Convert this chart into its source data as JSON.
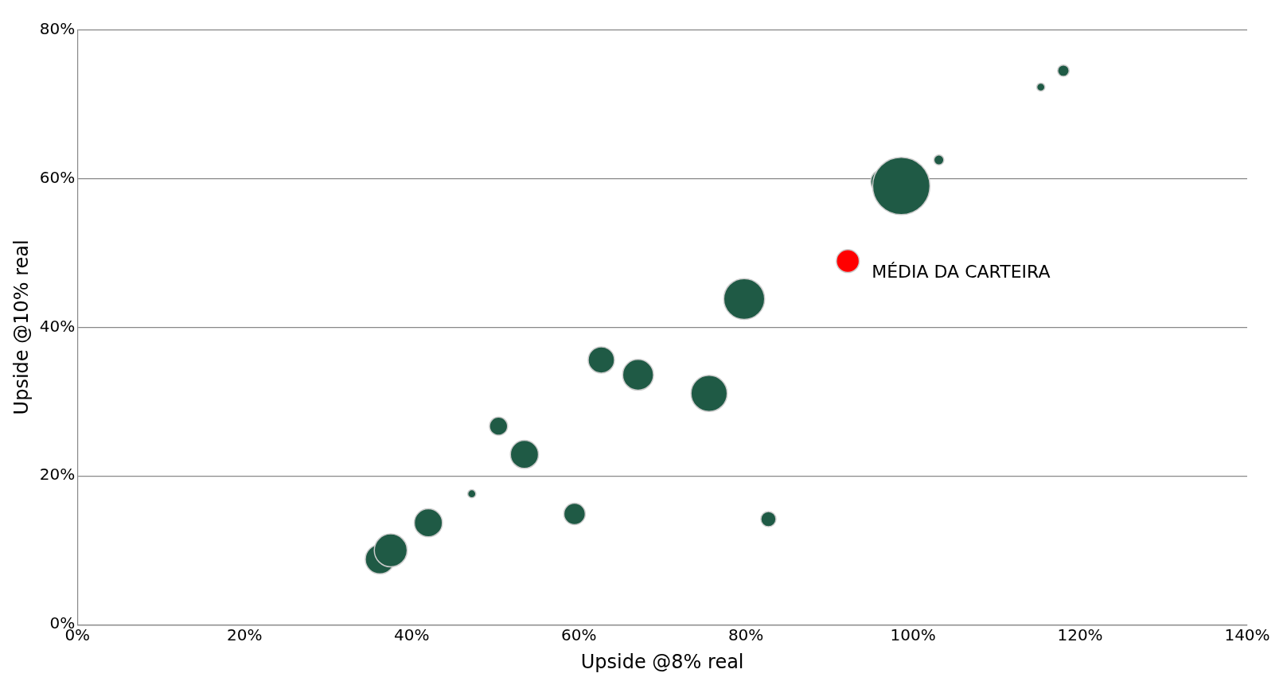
{
  "chart_data": {
    "type": "bubble",
    "xlabel": "Upside @8% real",
    "ylabel": "Upside @10% real",
    "xlim": [
      0,
      140
    ],
    "ylim": [
      0,
      80
    ],
    "xticks": [
      {
        "value": 0,
        "label": "0%"
      },
      {
        "value": 20,
        "label": "20%"
      },
      {
        "value": 40,
        "label": "40%"
      },
      {
        "value": 60,
        "label": "60%"
      },
      {
        "value": 80,
        "label": "80%"
      },
      {
        "value": 100,
        "label": "100%"
      },
      {
        "value": 120,
        "label": "120%"
      },
      {
        "value": 140,
        "label": "140%"
      }
    ],
    "yticks": [
      {
        "value": 0,
        "label": "0%"
      },
      {
        "value": 20,
        "label": "20%"
      },
      {
        "value": 40,
        "label": "40%"
      },
      {
        "value": 60,
        "label": "60%"
      },
      {
        "value": 80,
        "label": "80%"
      }
    ],
    "grid": "y",
    "legend": false,
    "series": [
      {
        "color": "#1f5a45",
        "x": [
          36.2,
          37.5,
          42.0,
          47.2,
          50.4,
          53.5,
          59.5,
          62.7,
          67.1,
          75.6,
          79.8,
          82.7,
          96.4,
          98.6,
          103.1,
          115.3,
          118.0
        ],
        "values": [
          8.8,
          10.0,
          13.7,
          17.6,
          26.7,
          22.9,
          14.9,
          35.6,
          33.6,
          31.1,
          43.8,
          14.2,
          59.6,
          59.0,
          62.5,
          72.3,
          74.5
        ],
        "sizes": [
          0.26,
          0.33,
          0.24,
          0.02,
          0.1,
          0.24,
          0.14,
          0.21,
          0.29,
          0.4,
          0.51,
          0.07,
          0.18,
          1,
          0.03,
          0.02,
          0.04
        ]
      },
      {
        "color": "#ff0000",
        "x": [
          92.2
        ],
        "values": [
          48.9
        ],
        "sizes": [
          0.16
        ]
      }
    ],
    "annotations": [
      {
        "text": "MÉDIA DA CARTEIRA",
        "x": 92.2,
        "y": 48.9
      }
    ]
  }
}
